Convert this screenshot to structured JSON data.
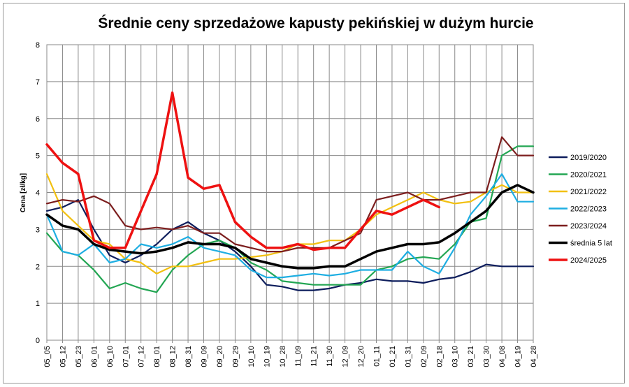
{
  "chart_data": {
    "type": "line",
    "title": "Średnie ceny sprzedażowe kapusty pekińskiej w dużym hurcie",
    "xlabel": "",
    "ylabel": "Cena [zł/kg]",
    "ylim": [
      0,
      8
    ],
    "yticks": [
      "0",
      "1",
      "2",
      "3",
      "4",
      "5",
      "6",
      "7",
      "8"
    ],
    "grid": true,
    "legend_position": "right",
    "x_tick_labels": [
      "05_05",
      "05_12",
      "05_23",
      "06_01",
      "06_10",
      "07_01",
      "07_12",
      "08_01",
      "08_12",
      "08_31",
      "09_09",
      "09_20",
      "09_29",
      "10_10",
      "10_19",
      "10_28",
      "11_09",
      "11_21",
      "11_30",
      "12_09",
      "12_20",
      "01_11",
      "01_21",
      "01_31",
      "02_09",
      "02_18",
      "03_10",
      "03_21",
      "03_30",
      "04_08",
      "04_19",
      "04_28"
    ],
    "series": [
      {
        "name": "2019/2020",
        "color": "#0d1d5c",
        "values": [
          3.5,
          3.6,
          3.8,
          3.0,
          2.3,
          2.1,
          2.3,
          2.6,
          3.0,
          3.2,
          2.9,
          2.7,
          2.4,
          2.0,
          1.5,
          1.45,
          1.35,
          1.35,
          1.4,
          1.5,
          1.55,
          1.65,
          1.6,
          1.6,
          1.55,
          1.65,
          1.7,
          1.85,
          2.05,
          2.0,
          2.0,
          2.0
        ]
      },
      {
        "name": "2020/2021",
        "color": "#23a653",
        "values": [
          2.9,
          2.4,
          2.3,
          1.9,
          1.4,
          1.55,
          1.4,
          1.3,
          1.9,
          2.3,
          2.6,
          2.7,
          2.5,
          2.1,
          1.9,
          1.6,
          1.55,
          1.5,
          1.5,
          1.5,
          1.5,
          1.9,
          2.0,
          2.2,
          2.25,
          2.2,
          2.6,
          3.2,
          3.3,
          5.0,
          5.25,
          5.25
        ]
      },
      {
        "name": "2021/2022",
        "color": "#f2c010",
        "values": [
          4.5,
          3.5,
          3.1,
          2.7,
          2.6,
          2.2,
          2.1,
          1.8,
          2.0,
          2.0,
          2.1,
          2.2,
          2.2,
          2.25,
          2.3,
          2.4,
          2.6,
          2.6,
          2.7,
          2.7,
          3.0,
          3.4,
          3.6,
          3.8,
          4.0,
          3.8,
          3.7,
          3.75,
          4.0,
          4.2,
          4.0,
          4.0
        ]
      },
      {
        "name": "2022/2023",
        "color": "#1eaee2",
        "values": [
          3.4,
          2.4,
          2.3,
          2.6,
          2.1,
          2.2,
          2.6,
          2.5,
          2.6,
          2.8,
          2.5,
          2.4,
          2.3,
          1.9,
          1.7,
          1.7,
          1.75,
          1.8,
          1.75,
          1.8,
          1.9,
          1.9,
          1.9,
          2.4,
          2.0,
          1.8,
          2.5,
          3.4,
          3.9,
          4.5,
          3.75,
          3.75
        ]
      },
      {
        "name": "2023/2024",
        "color": "#7c1e1e",
        "values": [
          3.7,
          3.8,
          3.75,
          3.9,
          3.7,
          3.1,
          3.0,
          3.05,
          3.0,
          3.1,
          2.9,
          2.9,
          2.6,
          2.5,
          2.4,
          2.4,
          2.5,
          2.5,
          2.5,
          2.7,
          2.9,
          3.8,
          3.9,
          4.0,
          3.8,
          3.8,
          3.9,
          4.0,
          4.0,
          5.5,
          5.0,
          5.0
        ]
      },
      {
        "name": "średnia 5 lat",
        "color": "#000000",
        "values": [
          3.4,
          3.1,
          3.0,
          2.6,
          2.45,
          2.4,
          2.35,
          2.4,
          2.5,
          2.65,
          2.6,
          2.6,
          2.5,
          2.2,
          2.1,
          2.0,
          1.95,
          1.95,
          2.0,
          2.0,
          2.2,
          2.4,
          2.5,
          2.6,
          2.6,
          2.65,
          2.9,
          3.2,
          3.5,
          4.0,
          4.2,
          4.0
        ]
      },
      {
        "name": "2024/2025",
        "color": "#ee1111",
        "values": [
          5.3,
          4.8,
          4.5,
          2.7,
          2.5,
          2.5,
          3.5,
          4.5,
          6.7,
          4.4,
          4.1,
          4.2,
          3.2,
          2.8,
          2.5,
          2.5,
          2.6,
          2.45,
          2.5,
          2.5,
          3.0,
          3.5,
          3.4,
          3.6,
          3.8,
          3.6,
          null,
          null,
          null,
          null,
          null,
          null
        ]
      }
    ]
  }
}
